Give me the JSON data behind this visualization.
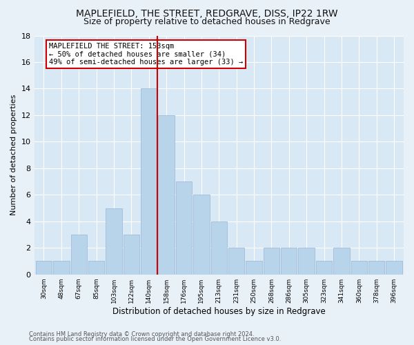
{
  "title": "MAPLEFIELD, THE STREET, REDGRAVE, DISS, IP22 1RW",
  "subtitle": "Size of property relative to detached houses in Redgrave",
  "xlabel": "Distribution of detached houses by size in Redgrave",
  "ylabel": "Number of detached properties",
  "bar_labels": [
    "30sqm",
    "48sqm",
    "67sqm",
    "85sqm",
    "103sqm",
    "122sqm",
    "140sqm",
    "158sqm",
    "176sqm",
    "195sqm",
    "213sqm",
    "231sqm",
    "250sqm",
    "268sqm",
    "286sqm",
    "305sqm",
    "323sqm",
    "341sqm",
    "360sqm",
    "378sqm",
    "396sqm"
  ],
  "bar_values": [
    1,
    1,
    3,
    1,
    5,
    3,
    14,
    12,
    7,
    6,
    4,
    2,
    1,
    2,
    2,
    2,
    1,
    2,
    1,
    1,
    1
  ],
  "bar_color": "#b8d4ea",
  "bar_edge_color": "#a0bcd8",
  "ylim": [
    0,
    18
  ],
  "yticks": [
    0,
    2,
    4,
    6,
    8,
    10,
    12,
    14,
    16,
    18
  ],
  "vline_color": "#cc0000",
  "annotation_box_title": "MAPLEFIELD THE STREET: 153sqm",
  "annotation_line1": "← 50% of detached houses are smaller (34)",
  "annotation_line2": "49% of semi-detached houses are larger (33) →",
  "annotation_box_color": "#cc0000",
  "annotation_box_fill": "#ffffff",
  "footnote1": "Contains HM Land Registry data © Crown copyright and database right 2024.",
  "footnote2": "Contains public sector information licensed under the Open Government Licence v3.0.",
  "bg_color": "#e8f0f8",
  "plot_bg_color": "#d8e8f4",
  "grid_color": "#ffffff",
  "title_fontsize": 10,
  "subtitle_fontsize": 9
}
